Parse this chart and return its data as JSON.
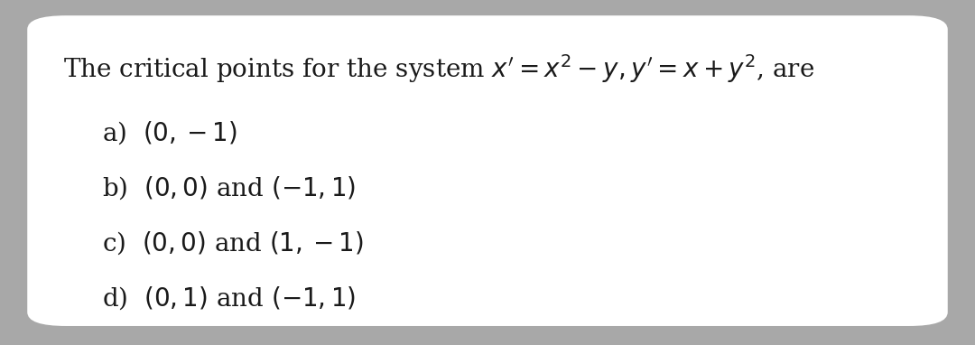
{
  "background_color": "#a8a8a8",
  "card_color": "#ffffff",
  "title_text": "The critical points for the system $x' = x^2 - y, y' = x + y^2$, are",
  "options": [
    "a)  $(0,-1)$",
    "b)  $(0,0)$ and $(-1,1)$",
    "c)  $(0,0)$ and $(1,-1)$",
    "d)  $(0,1)$ and $(-1,1)$"
  ],
  "title_fontsize": 20,
  "option_fontsize": 20,
  "font_color": "#1a1a1a",
  "font_family": "DejaVu Serif"
}
